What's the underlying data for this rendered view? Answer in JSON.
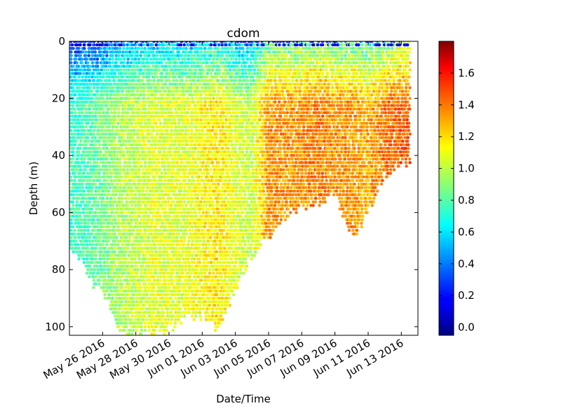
{
  "chart_data": {
    "type": "scatter",
    "title": "cdom",
    "xlabel": "Date/Time",
    "ylabel": "Depth (m)",
    "x_ticks": [
      "May 26 2016",
      "May 28 2016",
      "May 30 2016",
      "Jun 01 2016",
      "Jun 03 2016",
      "Jun 05 2016",
      "Jun 07 2016",
      "Jun 09 2016",
      "Jun 11 2016",
      "Jun 13 2016"
    ],
    "xlim": [
      "2016-05-24",
      "2016-06-14"
    ],
    "y_ticks": [
      "0",
      "20",
      "40",
      "60",
      "80",
      "100"
    ],
    "ylim": [
      103,
      0
    ],
    "y_inverted": true,
    "colorbar": {
      "colormap": "jet",
      "range": [
        -0.05,
        1.8
      ],
      "ticks": [
        "0.0",
        "0.2",
        "0.4",
        "0.6",
        "0.8",
        "1.0",
        "1.2",
        "1.4",
        "1.6"
      ]
    },
    "series": [
      {
        "max_depth_profile": [
          {
            "date": "2016-05-24",
            "max_depth_m": 72,
            "cdom": 0.75
          },
          {
            "date": "2016-05-25",
            "max_depth_m": 80,
            "cdom": 0.78
          },
          {
            "date": "2016-05-26",
            "max_depth_m": 88,
            "cdom": 0.85
          },
          {
            "date": "2016-05-27",
            "max_depth_m": 100,
            "cdom": 0.95
          },
          {
            "date": "2016-05-28",
            "max_depth_m": 102,
            "cdom": 1.0
          },
          {
            "date": "2016-05-29",
            "max_depth_m": 102,
            "cdom": 1.05
          },
          {
            "date": "2016-05-30",
            "max_depth_m": 100,
            "cdom": 1.05
          },
          {
            "date": "2016-05-31",
            "max_depth_m": 97,
            "cdom": 1.05
          },
          {
            "date": "2016-06-01",
            "max_depth_m": 96,
            "cdom": 1.1
          },
          {
            "date": "2016-06-02",
            "max_depth_m": 100,
            "cdom": 1.15
          },
          {
            "date": "2016-06-03",
            "max_depth_m": 87,
            "cdom": 1.05
          },
          {
            "date": "2016-06-04",
            "max_depth_m": 75,
            "cdom": 1.0
          },
          {
            "date": "2016-06-05",
            "max_depth_m": 67,
            "cdom": 1.3
          },
          {
            "date": "2016-06-06",
            "max_depth_m": 61,
            "cdom": 1.3
          },
          {
            "date": "2016-06-07",
            "max_depth_m": 58,
            "cdom": 1.3
          },
          {
            "date": "2016-06-08",
            "max_depth_m": 56,
            "cdom": 1.35
          },
          {
            "date": "2016-06-09",
            "max_depth_m": 52,
            "cdom": 1.3
          },
          {
            "date": "2016-06-10",
            "max_depth_m": 69,
            "cdom": 1.3
          },
          {
            "date": "2016-06-11",
            "max_depth_m": 60,
            "cdom": 1.25
          },
          {
            "date": "2016-06-12",
            "max_depth_m": 47,
            "cdom": 1.35
          },
          {
            "date": "2016-06-13",
            "max_depth_m": 42,
            "cdom": 1.4
          }
        ]
      }
    ]
  }
}
